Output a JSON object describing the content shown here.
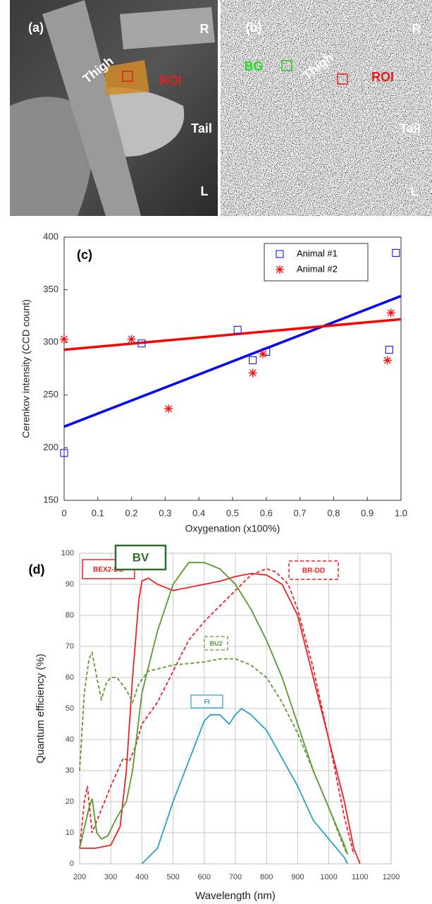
{
  "images": [
    {
      "label": "(a)",
      "annotations": [
        "Thigh",
        "ROI",
        "R",
        "Tail",
        "L"
      ]
    },
    {
      "label": "(b)",
      "annotations": [
        "BG",
        "Thigh",
        "ROI",
        "R",
        "Tail",
        "L"
      ]
    }
  ],
  "chart_data": [
    {
      "type": "scatter",
      "title": "(c)",
      "x_label": "Oxygenation (x100%)",
      "y_label": "Cerenkov intensity (CCD count)",
      "xlim": [
        0,
        1
      ],
      "xticks": [
        0,
        0.1,
        0.2,
        0.3,
        0.4,
        0.5,
        0.6,
        0.7,
        0.8,
        0.9,
        {
          "value": 1,
          "label": "1.0"
        }
      ],
      "ylim": [
        150,
        400
      ],
      "yticks": [
        150,
        200,
        250,
        300,
        350,
        400
      ],
      "legend": "upper right",
      "series": [
        {
          "name": "Animal #1",
          "color": "#0000ff",
          "marker": "square",
          "x": [
            0,
            0.23,
            0.515,
            0.56,
            0.6,
            0.965,
            0.985
          ],
          "values": [
            195,
            299,
            312,
            283,
            291,
            293,
            385
          ],
          "fit_x": [
            0,
            1
          ],
          "fit_values": [
            220,
            344
          ]
        },
        {
          "name": "Animal #2",
          "color": "#ff0000",
          "marker": "star",
          "x": [
            0,
            0.2,
            0.31,
            0.56,
            0.59,
            0.96,
            0.97
          ],
          "values": [
            303,
            303,
            237,
            271,
            289,
            283,
            328
          ],
          "fit_x": [
            0,
            1
          ],
          "fit_values": [
            293,
            322
          ]
        }
      ]
    },
    {
      "type": "line",
      "title": "(d)",
      "x_label": "Wavelength (nm)",
      "y_label": "Quantum efficiency (%)",
      "xlim": [
        200,
        1200
      ],
      "xticks": [
        200,
        300,
        400,
        500,
        600,
        700,
        800,
        900,
        1000,
        1100,
        1200
      ],
      "ylim": [
        0,
        100
      ],
      "yticks": [
        0,
        10,
        20,
        30,
        40,
        50,
        60,
        70,
        80,
        90,
        100
      ],
      "grid": true,
      "series": [
        {
          "name": "BEX2-DD",
          "color": "#ee2222",
          "dash": false,
          "x": [
            200,
            250,
            300,
            330,
            350,
            370,
            390,
            400,
            420,
            450,
            500,
            550,
            600,
            650,
            700,
            750,
            800,
            850,
            900,
            950,
            1000,
            1050,
            1080,
            1100
          ],
          "values": [
            5,
            5,
            6,
            12,
            30,
            60,
            85,
            91,
            92,
            90,
            88,
            89,
            90,
            91,
            92.5,
            93.5,
            93,
            90,
            80,
            60,
            40,
            20,
            5,
            0
          ]
        },
        {
          "name": "BR-DD",
          "color": "#ee2222",
          "dash": true,
          "x": [
            200,
            215,
            225,
            240,
            260,
            280,
            300,
            340,
            360,
            380,
            400,
            450,
            500,
            550,
            600,
            650,
            700,
            750,
            800,
            830,
            870,
            900,
            950,
            1000,
            1050,
            1080
          ],
          "values": [
            5,
            20,
            25,
            10,
            15,
            20,
            25,
            34,
            33,
            38,
            45,
            52,
            62,
            72,
            78,
            83,
            88,
            93,
            95,
            94,
            90,
            82,
            63,
            40,
            15,
            3
          ]
        },
        {
          "name": "BV",
          "color": "#5a9a2e",
          "dash": false,
          "x": [
            200,
            230,
            240,
            255,
            270,
            290,
            320,
            350,
            370,
            400,
            450,
            500,
            550,
            600,
            650,
            700,
            750,
            800,
            850,
            900,
            950,
            1000,
            1050,
            1060
          ],
          "values": [
            5,
            18,
            21,
            10,
            8,
            9,
            15,
            20,
            30,
            55,
            75,
            90,
            97,
            97,
            95,
            90,
            82,
            72,
            60,
            45,
            30,
            18,
            6,
            3
          ]
        },
        {
          "name": "BU2",
          "color": "#5a9a2e",
          "dash": true,
          "x": [
            200,
            215,
            230,
            240,
            255,
            270,
            285,
            300,
            320,
            350,
            370,
            390,
            420,
            500,
            600,
            650,
            700,
            750,
            800,
            850,
            900,
            950,
            1000,
            1050,
            1060
          ],
          "values": [
            30,
            55,
            66,
            68,
            60,
            53,
            58,
            60,
            60,
            56,
            52,
            58,
            62,
            64,
            65,
            66,
            66,
            64,
            60,
            52,
            42,
            30,
            18,
            5,
            3
          ]
        },
        {
          "name": "FI",
          "color": "#2aa0c8",
          "dash": false,
          "x": [
            400,
            450,
            500,
            550,
            600,
            620,
            650,
            680,
            700,
            720,
            750,
            800,
            850,
            900,
            950,
            1000,
            1050,
            1060
          ],
          "values": [
            0,
            5,
            20,
            33,
            46,
            48,
            48,
            45,
            48,
            50,
            48,
            43,
            34,
            25,
            14,
            8,
            2,
            0
          ]
        }
      ]
    }
  ]
}
